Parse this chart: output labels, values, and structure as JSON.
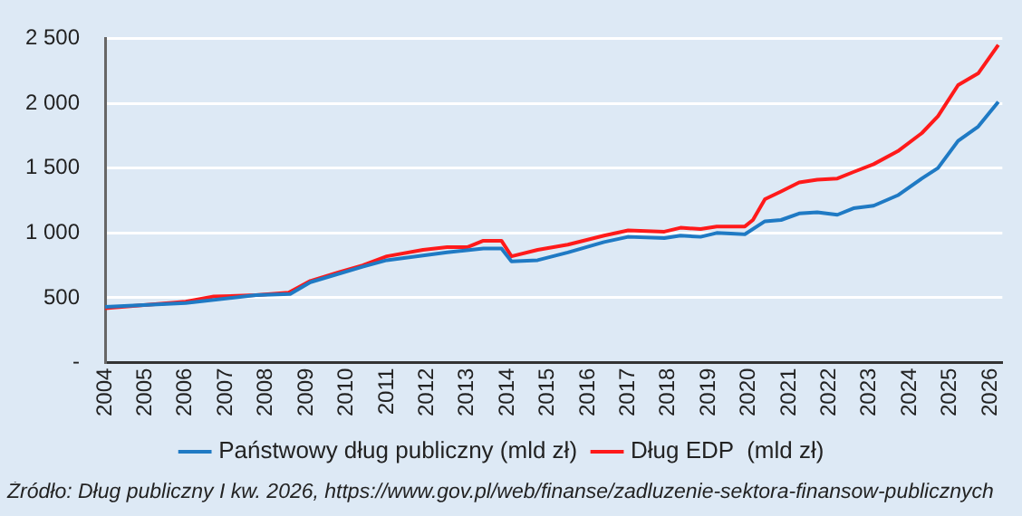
{
  "chart_data": {
    "type": "line",
    "xlim": [
      2004,
      2026.3
    ],
    "xticks": [
      2004,
      2005,
      2006,
      2007,
      2008,
      2009,
      2010,
      2011,
      2012,
      2013,
      2014,
      2015,
      2016,
      2017,
      2018,
      2019,
      2020,
      2021,
      2022,
      2023,
      2024,
      2025,
      2026
    ],
    "ylim": [
      0,
      2500
    ],
    "yticks": [
      {
        "value": 0,
        "label": "-"
      },
      500,
      {
        "value": 1000,
        "label": "1 000"
      },
      {
        "value": 1500,
        "label": "1 500"
      },
      {
        "value": 2000,
        "label": "2 000"
      },
      {
        "value": 2500,
        "label": "2 500"
      }
    ],
    "grid": "y",
    "legend": "bottom",
    "marker": "none",
    "line_style": "solid",
    "series": [
      {
        "name": "Państwowy dług publiczny (mld zł)",
        "color": "#1f7ac4",
        "x": [
          2004,
          2006,
          2007.75,
          2008.6,
          2009.1,
          2010.4,
          2011,
          2012.5,
          2013.4,
          2013.85,
          2014.1,
          2014.75,
          2015.5,
          2016.4,
          2017,
          2017.9,
          2018.3,
          2018.8,
          2019.2,
          2019.9,
          2020.4,
          2020.8,
          2021.25,
          2021.7,
          2022.2,
          2022.6,
          2023.1,
          2023.7,
          2024.3,
          2024.7,
          2025.2,
          2025.7,
          2026.2
        ],
        "values": [
          430,
          460,
          520,
          530,
          620,
          740,
          790,
          850,
          880,
          880,
          780,
          790,
          850,
          930,
          970,
          960,
          980,
          970,
          1000,
          990,
          1090,
          1100,
          1150,
          1160,
          1140,
          1190,
          1210,
          1290,
          1420,
          1500,
          1710,
          1820,
          2010
        ]
      },
      {
        "name": "Dług EDP  (mld zł)",
        "color": "#ff1a1a",
        "x": [
          2004,
          2006,
          2006.7,
          2007.75,
          2008.56,
          2008.8,
          2009.1,
          2009.83,
          2010.4,
          2011,
          2011.9,
          2012.5,
          2013,
          2013.4,
          2013.85,
          2014.1,
          2014.75,
          2015.5,
          2016.4,
          2017,
          2017.9,
          2018.3,
          2018.8,
          2019.2,
          2019.9,
          2020.1,
          2020.4,
          2020.8,
          2021.25,
          2021.7,
          2022.2,
          2022.6,
          2023.1,
          2023.7,
          2024.3,
          2024.7,
          2025.2,
          2025.7,
          2026.2
        ],
        "values": [
          420,
          470,
          510,
          520,
          540,
          580,
          630,
          700,
          750,
          820,
          870,
          890,
          890,
          940,
          940,
          820,
          870,
          910,
          980,
          1020,
          1010,
          1040,
          1030,
          1050,
          1050,
          1100,
          1260,
          1320,
          1390,
          1410,
          1420,
          1470,
          1530,
          1630,
          1770,
          1900,
          2140,
          2230,
          2450
        ]
      }
    ],
    "annotations": [
      "Źródło: Dług publiczny I kw. 2026, https://www.gov.pl/web/finanse/zadluzenie-sektora-finansow-publicznych"
    ]
  }
}
